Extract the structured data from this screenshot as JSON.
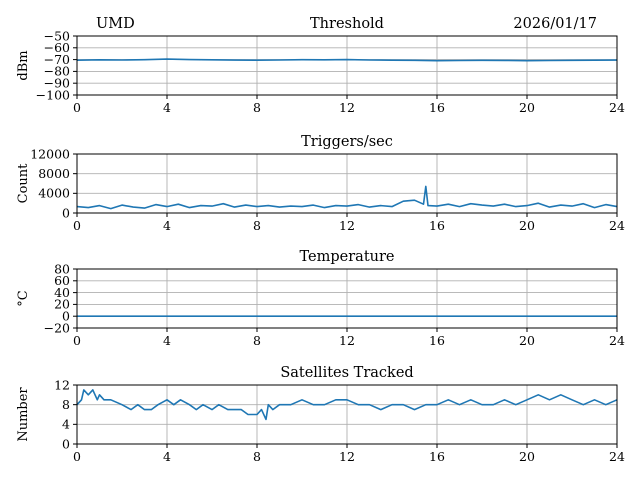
{
  "header": {
    "station": "UMD",
    "date": "2026/01/17"
  },
  "style": {
    "line_color": "#1f77b4",
    "grid_color": "#b0b0b0"
  },
  "chart_data": [
    {
      "type": "line",
      "title": "Threshold",
      "ylabel": "dBm",
      "xlim": [
        0,
        24
      ],
      "ylim": [
        -100,
        -50
      ],
      "xticks": [
        0,
        4,
        8,
        12,
        16,
        20,
        24
      ],
      "yticks": [
        -100,
        -90,
        -80,
        -70,
        -60,
        -50
      ],
      "ytick_labels": [
        "−100",
        "−90",
        "−80",
        "−70",
        "−60",
        "−50"
      ],
      "grid": true,
      "series": [
        {
          "x": [
            0,
            1,
            2,
            3,
            4,
            5,
            6,
            7,
            8,
            9,
            10,
            11,
            12,
            13,
            14,
            15,
            16,
            17,
            18,
            19,
            20,
            21,
            22,
            23,
            24
          ],
          "values": [
            -70.5,
            -70.2,
            -70.3,
            -70.1,
            -69.6,
            -70.0,
            -70.2,
            -70.4,
            -70.5,
            -70.3,
            -70.1,
            -70.2,
            -70.0,
            -70.3,
            -70.5,
            -70.6,
            -70.9,
            -70.8,
            -70.6,
            -70.7,
            -70.9,
            -70.8,
            -70.6,
            -70.5,
            -70.4
          ]
        }
      ]
    },
    {
      "type": "line",
      "title": "Triggers/sec",
      "ylabel": "Count",
      "xlim": [
        0,
        24
      ],
      "ylim": [
        0,
        12000
      ],
      "xticks": [
        0,
        4,
        8,
        12,
        16,
        20,
        24
      ],
      "yticks": [
        0,
        4000,
        8000,
        12000
      ],
      "ytick_labels": [
        "0",
        "4000",
        "8000",
        "12000"
      ],
      "grid": true,
      "series": [
        {
          "x": [
            0,
            0.5,
            1,
            1.5,
            2,
            2.5,
            3,
            3.5,
            4,
            4.5,
            5,
            5.5,
            6,
            6.5,
            7,
            7.5,
            8,
            8.5,
            9,
            9.5,
            10,
            10.5,
            11,
            11.5,
            12,
            12.5,
            13,
            13.5,
            14,
            14.5,
            15,
            15.4,
            15.5,
            15.6,
            16,
            16.5,
            17,
            17.5,
            18,
            18.5,
            19,
            19.5,
            20,
            20.5,
            21,
            21.5,
            22,
            22.5,
            23,
            23.5,
            24
          ],
          "values": [
            1300,
            1100,
            1500,
            900,
            1600,
            1200,
            1000,
            1700,
            1300,
            1800,
            1100,
            1500,
            1400,
            1900,
            1200,
            1600,
            1300,
            1500,
            1200,
            1400,
            1300,
            1600,
            1100,
            1500,
            1400,
            1700,
            1200,
            1500,
            1300,
            2400,
            2600,
            1800,
            5400,
            1500,
            1400,
            1800,
            1300,
            1900,
            1600,
            1400,
            1800,
            1300,
            1500,
            2000,
            1200,
            1600,
            1400,
            1900,
            1100,
            1700,
            1300
          ]
        }
      ]
    },
    {
      "type": "line",
      "title": "Temperature",
      "ylabel": "°C",
      "xlim": [
        0,
        24
      ],
      "ylim": [
        -20,
        80
      ],
      "xticks": [
        0,
        4,
        8,
        12,
        16,
        20,
        24
      ],
      "yticks": [
        -20,
        0,
        20,
        40,
        60,
        80
      ],
      "ytick_labels": [
        "−20",
        "0",
        "20",
        "40",
        "60",
        "80"
      ],
      "grid": true,
      "series": [
        {
          "x": [
            0,
            24
          ],
          "values": [
            0,
            0
          ]
        }
      ]
    },
    {
      "type": "line",
      "title": "Satellites Tracked",
      "ylabel": "Number",
      "xlim": [
        0,
        24
      ],
      "ylim": [
        0,
        12
      ],
      "xticks": [
        0,
        4,
        8,
        12,
        16,
        20,
        24
      ],
      "yticks": [
        0,
        4,
        8,
        12
      ],
      "ytick_labels": [
        "0",
        "4",
        "8",
        "12"
      ],
      "grid": true,
      "series": [
        {
          "x": [
            0,
            0.2,
            0.3,
            0.5,
            0.7,
            0.9,
            1.0,
            1.2,
            1.5,
            2.0,
            2.4,
            2.7,
            3.0,
            3.3,
            3.6,
            4.0,
            4.3,
            4.6,
            5.0,
            5.3,
            5.6,
            6.0,
            6.3,
            6.7,
            7.0,
            7.3,
            7.6,
            8.0,
            8.2,
            8.4,
            8.5,
            8.7,
            9.0,
            9.5,
            10.0,
            10.5,
            11.0,
            11.5,
            12.0,
            12.5,
            13.0,
            13.5,
            14.0,
            14.5,
            15.0,
            15.5,
            16.0,
            16.5,
            17.0,
            17.5,
            18.0,
            18.5,
            19.0,
            19.5,
            20.0,
            20.5,
            21.0,
            21.5,
            22.0,
            22.5,
            23.0,
            23.5,
            24.0
          ],
          "values": [
            8,
            9,
            11,
            10,
            11,
            9,
            10,
            9,
            9,
            8,
            7,
            8,
            7,
            7,
            8,
            9,
            8,
            9,
            8,
            7,
            8,
            7,
            8,
            7,
            7,
            7,
            6,
            6,
            7,
            5,
            8,
            7,
            8,
            8,
            9,
            8,
            8,
            9,
            9,
            8,
            8,
            7,
            8,
            8,
            7,
            8,
            8,
            9,
            8,
            9,
            8,
            8,
            9,
            8,
            9,
            10,
            9,
            10,
            9,
            8,
            9,
            8,
            9
          ]
        }
      ]
    }
  ]
}
